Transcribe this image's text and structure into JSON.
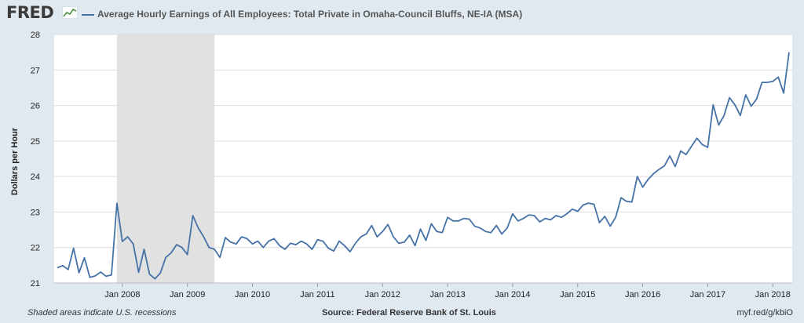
{
  "header": {
    "logo_text": "FRED",
    "logo_icon": "fred-sparkline-icon",
    "title": "Average Hourly Earnings of All Employees: Total Private in Omaha-Council Bluffs, NE-IA (MSA)"
  },
  "footer": {
    "recession_note": "Shaded areas indicate U.S. recessions",
    "source": "Source: Federal Reserve Bank of St. Louis",
    "link": "myf.red/g/kbiO"
  },
  "colors": {
    "line": "#4572a7",
    "recession": "#e1e1e1",
    "frame": "#e1e9f0",
    "grid": "#dcdcdc"
  },
  "chart_data": {
    "type": "line",
    "title": "Average Hourly Earnings of All Employees: Total Private in Omaha-Council Bluffs, NE-IA (MSA)",
    "xlabel": "",
    "ylabel": "Dollars per Hour",
    "ylim": [
      21,
      28
    ],
    "yticks": [
      "21",
      "22",
      "23",
      "24",
      "25",
      "26",
      "27",
      "28"
    ],
    "xticks": [
      "Jan 2008",
      "Jan 2009",
      "Jan 2010",
      "Jan 2011",
      "Jan 2012",
      "Jan 2013",
      "Jan 2014",
      "Jan 2015",
      "Jan 2016",
      "Jan 2017",
      "Jan 2018"
    ],
    "grid": "horizontal",
    "recession": {
      "start": "2007-12",
      "end": "2009-06"
    },
    "x_start": "2007-01",
    "x_end": "2018-04",
    "series": [
      {
        "values": [
          21.43,
          21.49,
          21.38,
          21.98,
          21.29,
          21.71,
          21.16,
          21.2,
          21.31,
          21.19,
          21.23,
          23.25,
          22.17,
          22.3,
          22.1,
          21.3,
          21.95,
          21.25,
          21.12,
          21.28,
          21.72,
          21.85,
          22.08,
          22.0,
          21.8,
          22.9,
          22.55,
          22.3,
          22.0,
          21.95,
          21.72,
          22.28,
          22.15,
          22.1,
          22.3,
          22.25,
          22.1,
          22.18,
          22.0,
          22.18,
          22.25,
          22.05,
          21.95,
          22.12,
          22.08,
          22.18,
          22.1,
          21.95,
          22.22,
          22.18,
          21.98,
          21.9,
          22.18,
          22.05,
          21.88,
          22.12,
          22.3,
          22.38,
          22.62,
          22.3,
          22.45,
          22.65,
          22.3,
          22.12,
          22.15,
          22.35,
          22.05,
          22.52,
          22.2,
          22.67,
          22.45,
          22.42,
          22.85,
          22.75,
          22.75,
          22.82,
          22.8,
          22.6,
          22.55,
          22.45,
          22.42,
          22.62,
          22.38,
          22.55,
          22.95,
          22.75,
          22.82,
          22.92,
          22.9,
          22.72,
          22.82,
          22.78,
          22.9,
          22.85,
          22.95,
          23.08,
          23.02,
          23.2,
          23.25,
          23.22,
          22.7,
          22.88,
          22.6,
          22.85,
          23.4,
          23.3,
          23.28,
          24.0,
          23.7,
          23.92,
          24.08,
          24.2,
          24.3,
          24.58,
          24.28,
          24.72,
          24.62,
          24.85,
          25.08,
          24.9,
          24.82,
          26.02,
          25.45,
          25.72,
          26.22,
          26.02,
          25.72,
          26.3,
          25.98,
          26.18,
          26.65,
          26.65,
          26.68,
          26.8,
          26.35,
          27.5
        ]
      }
    ]
  }
}
